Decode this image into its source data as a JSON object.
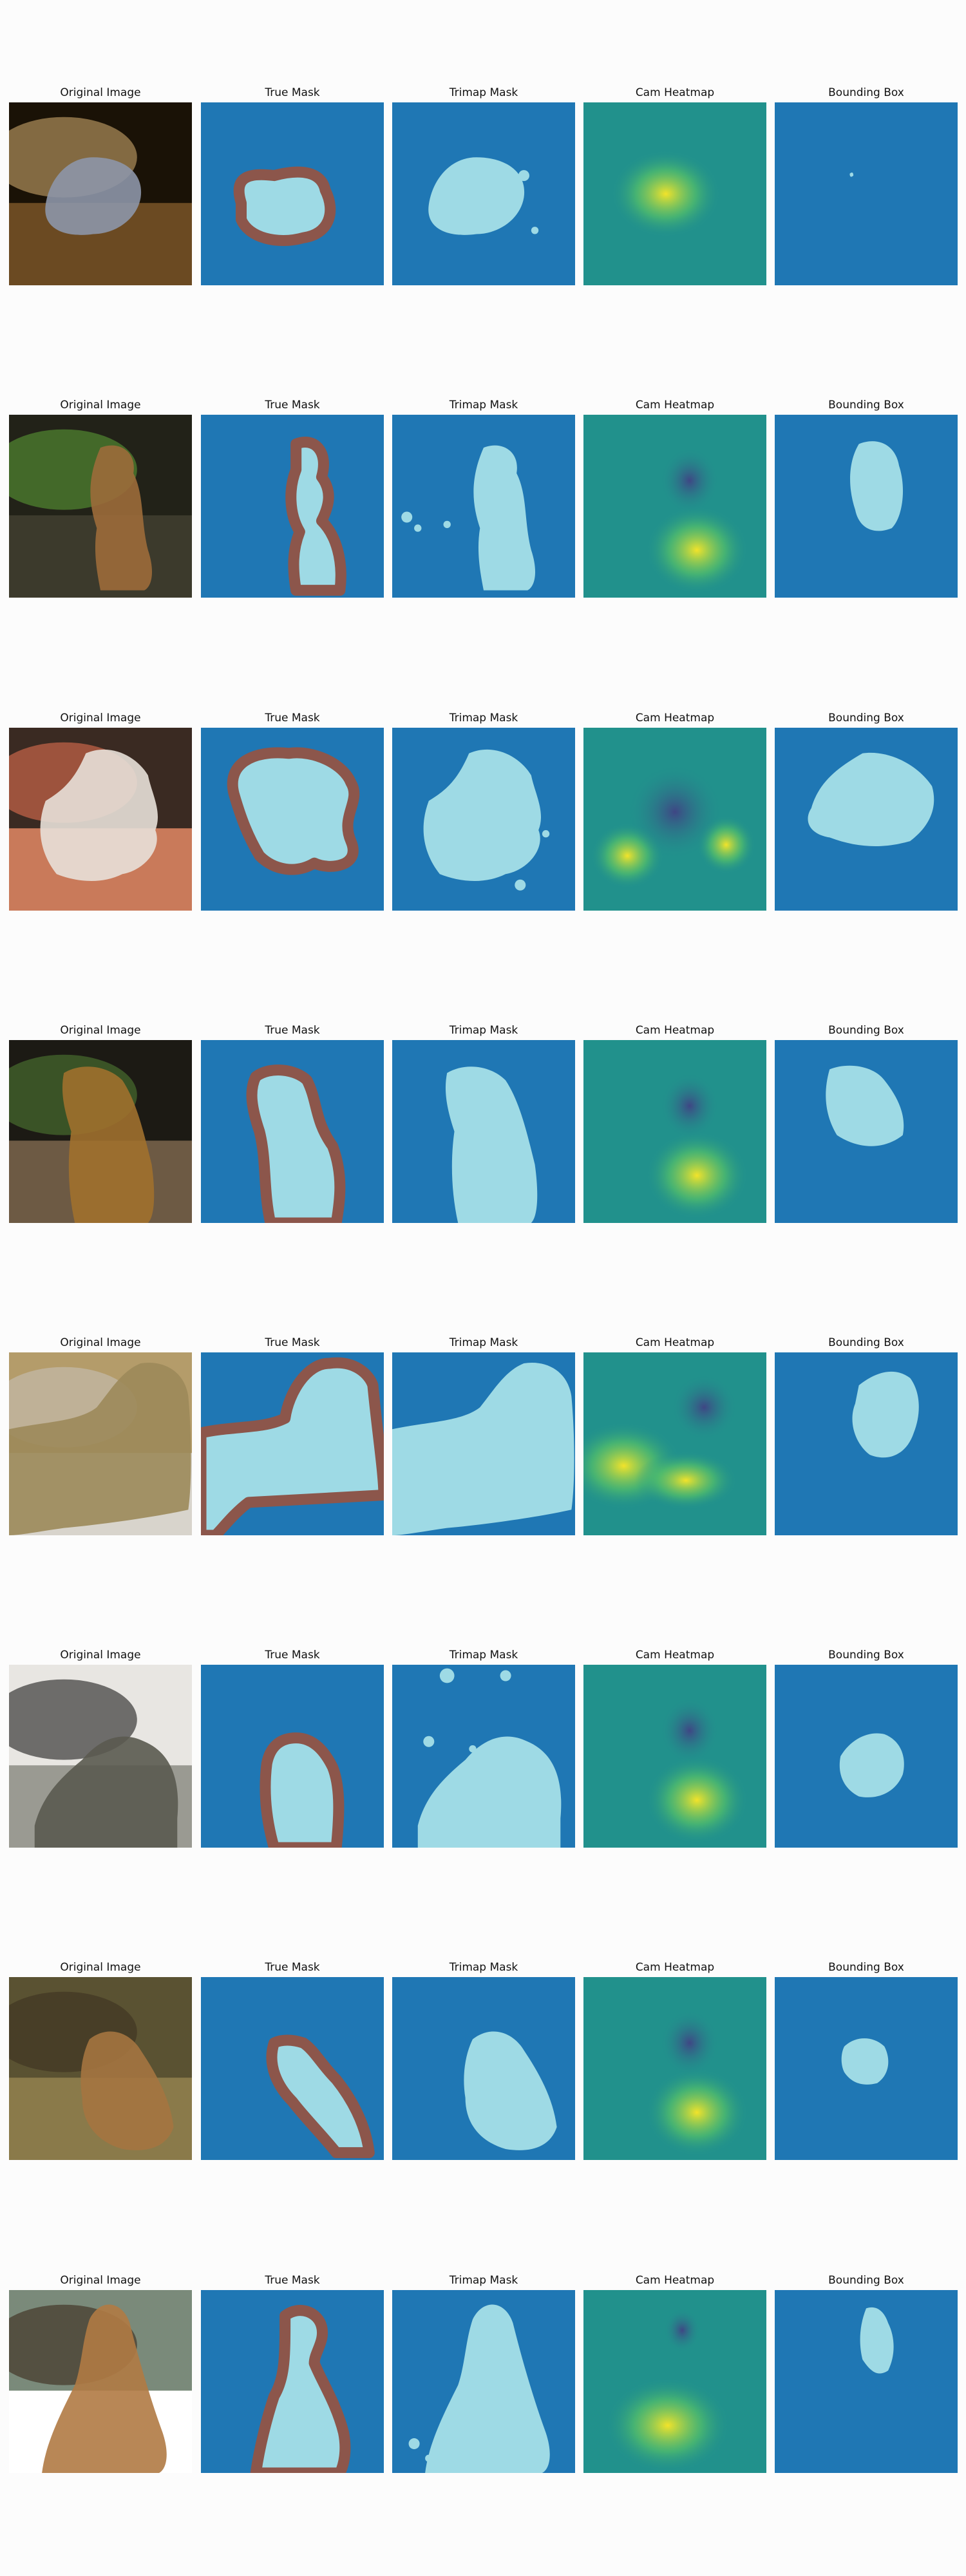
{
  "figure": {
    "background": "#fcfcfc",
    "column_titles": [
      "Original Image",
      "True Mask",
      "Trimap Mask",
      "Cam Heatmap",
      "Bounding Box"
    ],
    "colors": {
      "mask_background": "#1f77b4",
      "mask_foreground": "#9edae5",
      "mask_boundary": "#8c564b",
      "heatmap_base": "#21918c",
      "heatmap_high": "#fde725",
      "heatmap_mid": "#5ec962",
      "heatmap_low": "#443983"
    },
    "rows": [
      {
        "photo_subject": "gray cat lying on a wooden floor",
        "photo_palette": [
          "#1a1206",
          "#6b4a22",
          "#c9a56a",
          "#8d96a8"
        ],
        "heatmap_pattern": "center-high"
      },
      {
        "photo_subject": "brown dog sitting on grass",
        "photo_palette": [
          "#222218",
          "#3c3a2c",
          "#5a9a36",
          "#9c6c3a"
        ],
        "heatmap_pattern": "bottom-high"
      },
      {
        "photo_subject": "white dog lying on a red blanket",
        "photo_palette": [
          "#3a2a22",
          "#c97a5a",
          "#e07050",
          "#e8e0d8"
        ],
        "heatmap_pattern": "edges-high"
      },
      {
        "photo_subject": "boxer dog standing near a brick wall",
        "photo_palette": [
          "#1c1a14",
          "#6d5a44",
          "#4f7a32",
          "#a0702e"
        ],
        "heatmap_pattern": "bottom-high"
      },
      {
        "photo_subject": "fluffy white cat on a couch",
        "photo_palette": [
          "#b49c6a",
          "#d8d4cc",
          "#c6bfb6",
          "#9c8a5a"
        ],
        "heatmap_pattern": "left-high"
      },
      {
        "photo_subject": "black dog on a white bed",
        "photo_palette": [
          "#e8e6e2",
          "#9a9a92",
          "#1a1a1a",
          "#5a5a50"
        ],
        "heatmap_pattern": "bottom-high"
      },
      {
        "photo_subject": "brown dog in dry grass",
        "photo_palette": [
          "#5a5232",
          "#8a7a4a",
          "#3c3220",
          "#a47440"
        ],
        "heatmap_pattern": "bottom-high"
      },
      {
        "photo_subject": "saint bernard dog in a living room",
        "photo_palette": [
          "#7a8a7a",
          "#ffffff",
          "#3a2a1a",
          "#b07a44"
        ],
        "heatmap_pattern": "lower-high"
      }
    ]
  }
}
